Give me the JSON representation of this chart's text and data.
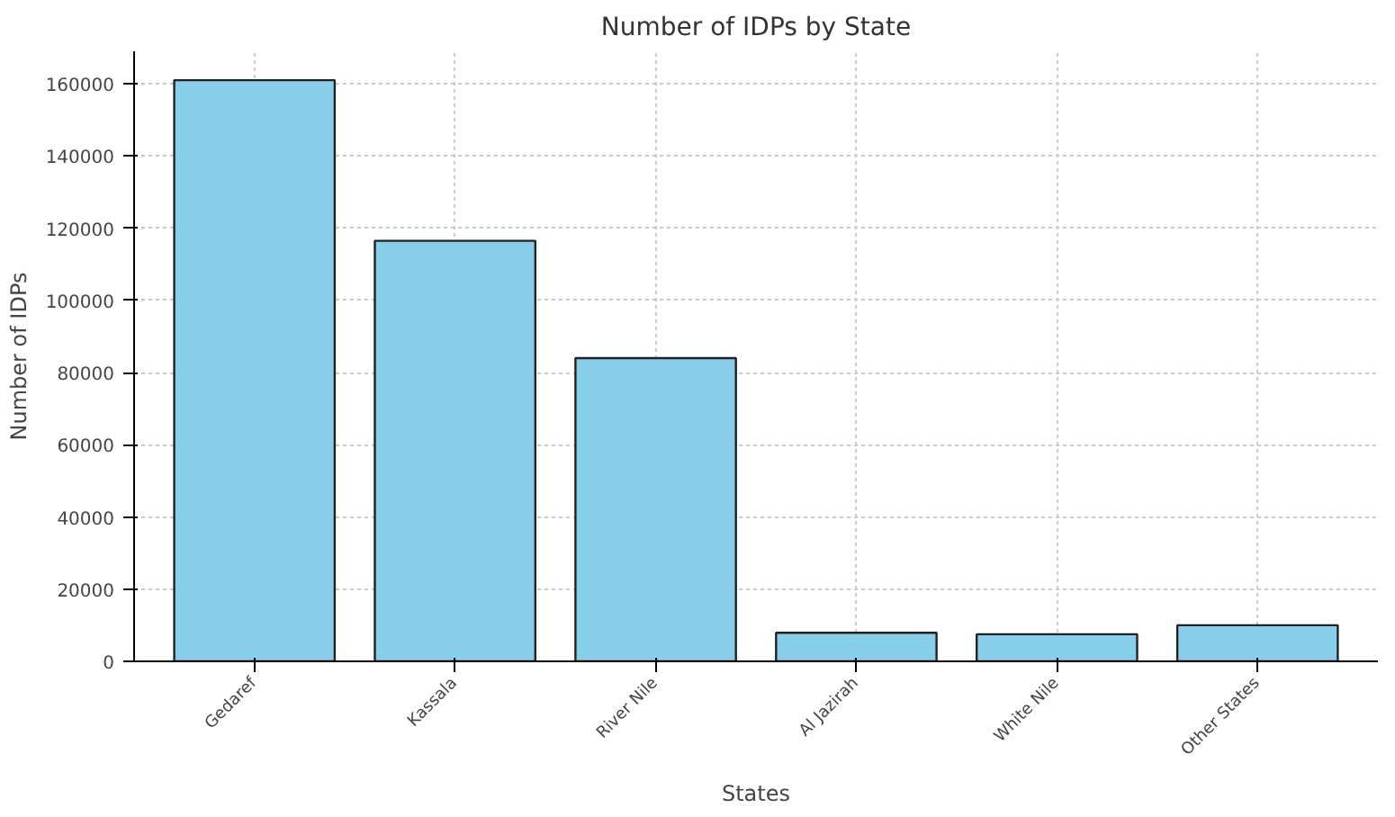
{
  "chart_data": {
    "type": "bar",
    "title": "Number of IDPs by State",
    "xlabel": "States",
    "ylabel": "Number of IDPs",
    "categories": [
      "Gedaref",
      "Kassala",
      "River Nile",
      "Al Jazirah",
      "White Nile",
      "Other States"
    ],
    "values": [
      161000,
      116500,
      84000,
      7900,
      7500,
      10000
    ],
    "color": "#87ceeb",
    "ylim": [
      0,
      169000
    ],
    "yticks": [
      0,
      20000,
      40000,
      60000,
      80000,
      100000,
      120000,
      140000,
      160000
    ],
    "grid": true
  }
}
